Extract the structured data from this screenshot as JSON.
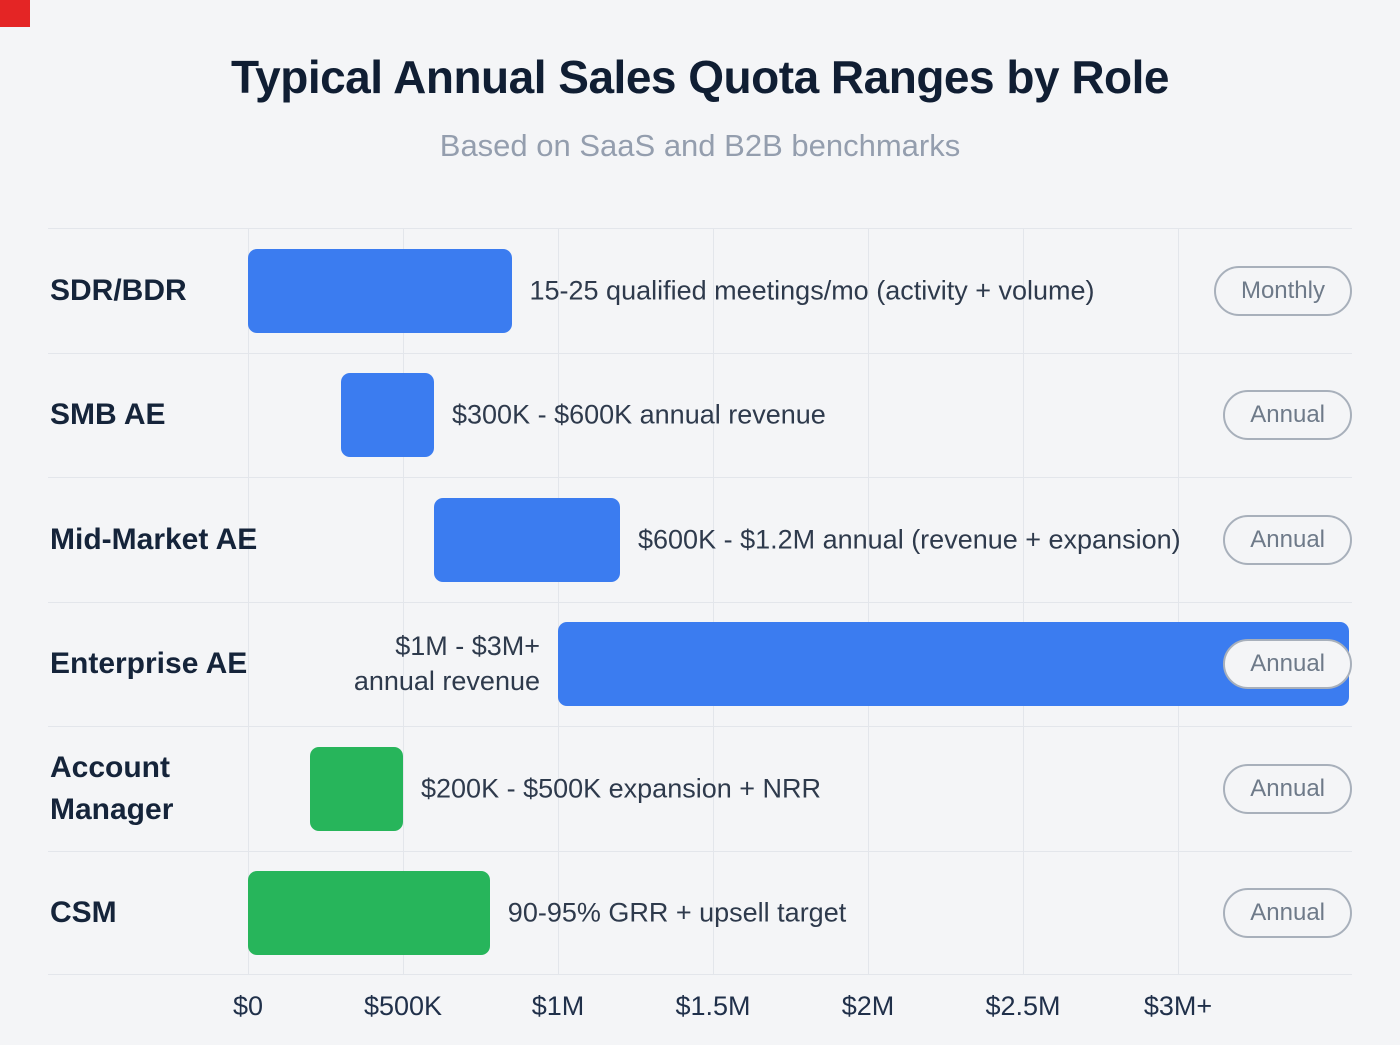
{
  "header": {
    "title": "Typical Annual Sales Quota Ranges by Role",
    "subtitle": "Based on SaaS and B2B benchmarks"
  },
  "colors": {
    "blue": "#3b7cf0",
    "green": "#27b55b",
    "background": "#f4f5f7",
    "gridline": "#e3e6eb",
    "corner_mark": "#e42525"
  },
  "chart_data": {
    "type": "bar",
    "orientation": "horizontal",
    "unit": "USD (millions)",
    "x_axis_range_musd": [
      0,
      3.55
    ],
    "grid": true,
    "x_ticks": [
      {
        "label": "$0",
        "value": 0
      },
      {
        "label": "$500K",
        "value": 0.5
      },
      {
        "label": "$1M",
        "value": 1
      },
      {
        "label": "$1.5M",
        "value": 1.5
      },
      {
        "label": "$2M",
        "value": 2
      },
      {
        "label": "$2.5M",
        "value": 2.5
      },
      {
        "label": "$3M+",
        "value": 3
      }
    ],
    "rows": [
      {
        "role": "SDR/BDR",
        "annotation": "15-25 qualified meetings/mo (activity + volume)",
        "badge": "Monthly",
        "color": "blue",
        "bar_start": 0,
        "bar_end": 0.85,
        "annotation_side": "right"
      },
      {
        "role": "SMB AE",
        "annotation": "$300K - $600K annual revenue",
        "badge": "Annual",
        "color": "blue",
        "bar_start": 0.3,
        "bar_end": 0.6,
        "annotation_side": "right"
      },
      {
        "role": "Mid-Market AE",
        "annotation": "$600K - $1.2M annual (revenue + expansion)",
        "badge": "Annual",
        "color": "blue",
        "bar_start": 0.6,
        "bar_end": 1.2,
        "annotation_side": "right"
      },
      {
        "role": "Enterprise AE",
        "annotation": "$1M - $3M+\nannual revenue",
        "badge": "Annual",
        "color": "blue",
        "bar_start": 1.0,
        "bar_end": 3.55,
        "annotation_side": "left"
      },
      {
        "role": "Account\nManager",
        "annotation": "$200K - $500K expansion + NRR",
        "badge": "Annual",
        "color": "green",
        "bar_start": 0.2,
        "bar_end": 0.5,
        "annotation_side": "right"
      },
      {
        "role": "CSM",
        "annotation": "90-95% GRR + upsell target",
        "badge": "Annual",
        "color": "green",
        "bar_start": 0,
        "bar_end": 0.78,
        "annotation_side": "right"
      }
    ]
  }
}
